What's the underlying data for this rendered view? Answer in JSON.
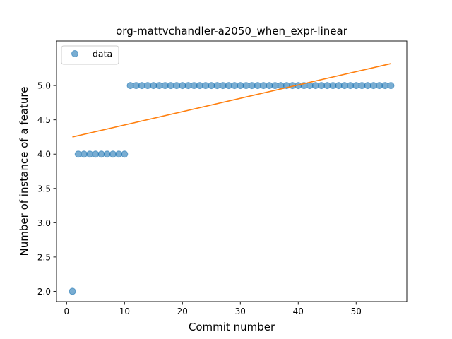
{
  "chart_data": {
    "type": "scatter",
    "title": "org-mattvchandler-a2050_when_expr-linear",
    "xlabel": "Commit number",
    "ylabel": "Number of instance of a feature",
    "xlim": [
      -1.75,
      58.75
    ],
    "ylim": [
      1.85,
      5.65
    ],
    "xticks": [
      0,
      10,
      20,
      30,
      40,
      50
    ],
    "xtick_labels": [
      "0",
      "10",
      "20",
      "30",
      "40",
      "50"
    ],
    "yticks": [
      2.0,
      2.5,
      3.0,
      3.5,
      4.0,
      4.5,
      5.0
    ],
    "ytick_labels": [
      "2.0",
      "2.5",
      "3.0",
      "3.5",
      "4.0",
      "4.5",
      "5.0"
    ],
    "grid": false,
    "legend": {
      "position": "top-left",
      "entries": [
        "data"
      ]
    },
    "colors": {
      "data": "#1f77b4",
      "fit": "#ff7f0e"
    },
    "series": [
      {
        "name": "data",
        "kind": "scatter",
        "x": [
          1,
          2,
          3,
          4,
          5,
          6,
          7,
          8,
          9,
          10,
          11,
          12,
          13,
          14,
          15,
          16,
          17,
          18,
          19,
          20,
          21,
          22,
          23,
          24,
          25,
          26,
          27,
          28,
          29,
          30,
          31,
          32,
          33,
          34,
          35,
          36,
          37,
          38,
          39,
          40,
          41,
          42,
          43,
          44,
          45,
          46,
          47,
          48,
          49,
          50,
          51,
          52,
          53,
          54,
          55,
          56
        ],
        "y": [
          2,
          4,
          4,
          4,
          4,
          4,
          4,
          4,
          4,
          4,
          5,
          5,
          5,
          5,
          5,
          5,
          5,
          5,
          5,
          5,
          5,
          5,
          5,
          5,
          5,
          5,
          5,
          5,
          5,
          5,
          5,
          5,
          5,
          5,
          5,
          5,
          5,
          5,
          5,
          5,
          5,
          5,
          5,
          5,
          5,
          5,
          5,
          5,
          5,
          5,
          5,
          5,
          5,
          5,
          5,
          5
        ]
      },
      {
        "kind": "line",
        "x": [
          1,
          56
        ],
        "y": [
          4.25,
          5.32
        ]
      }
    ]
  }
}
